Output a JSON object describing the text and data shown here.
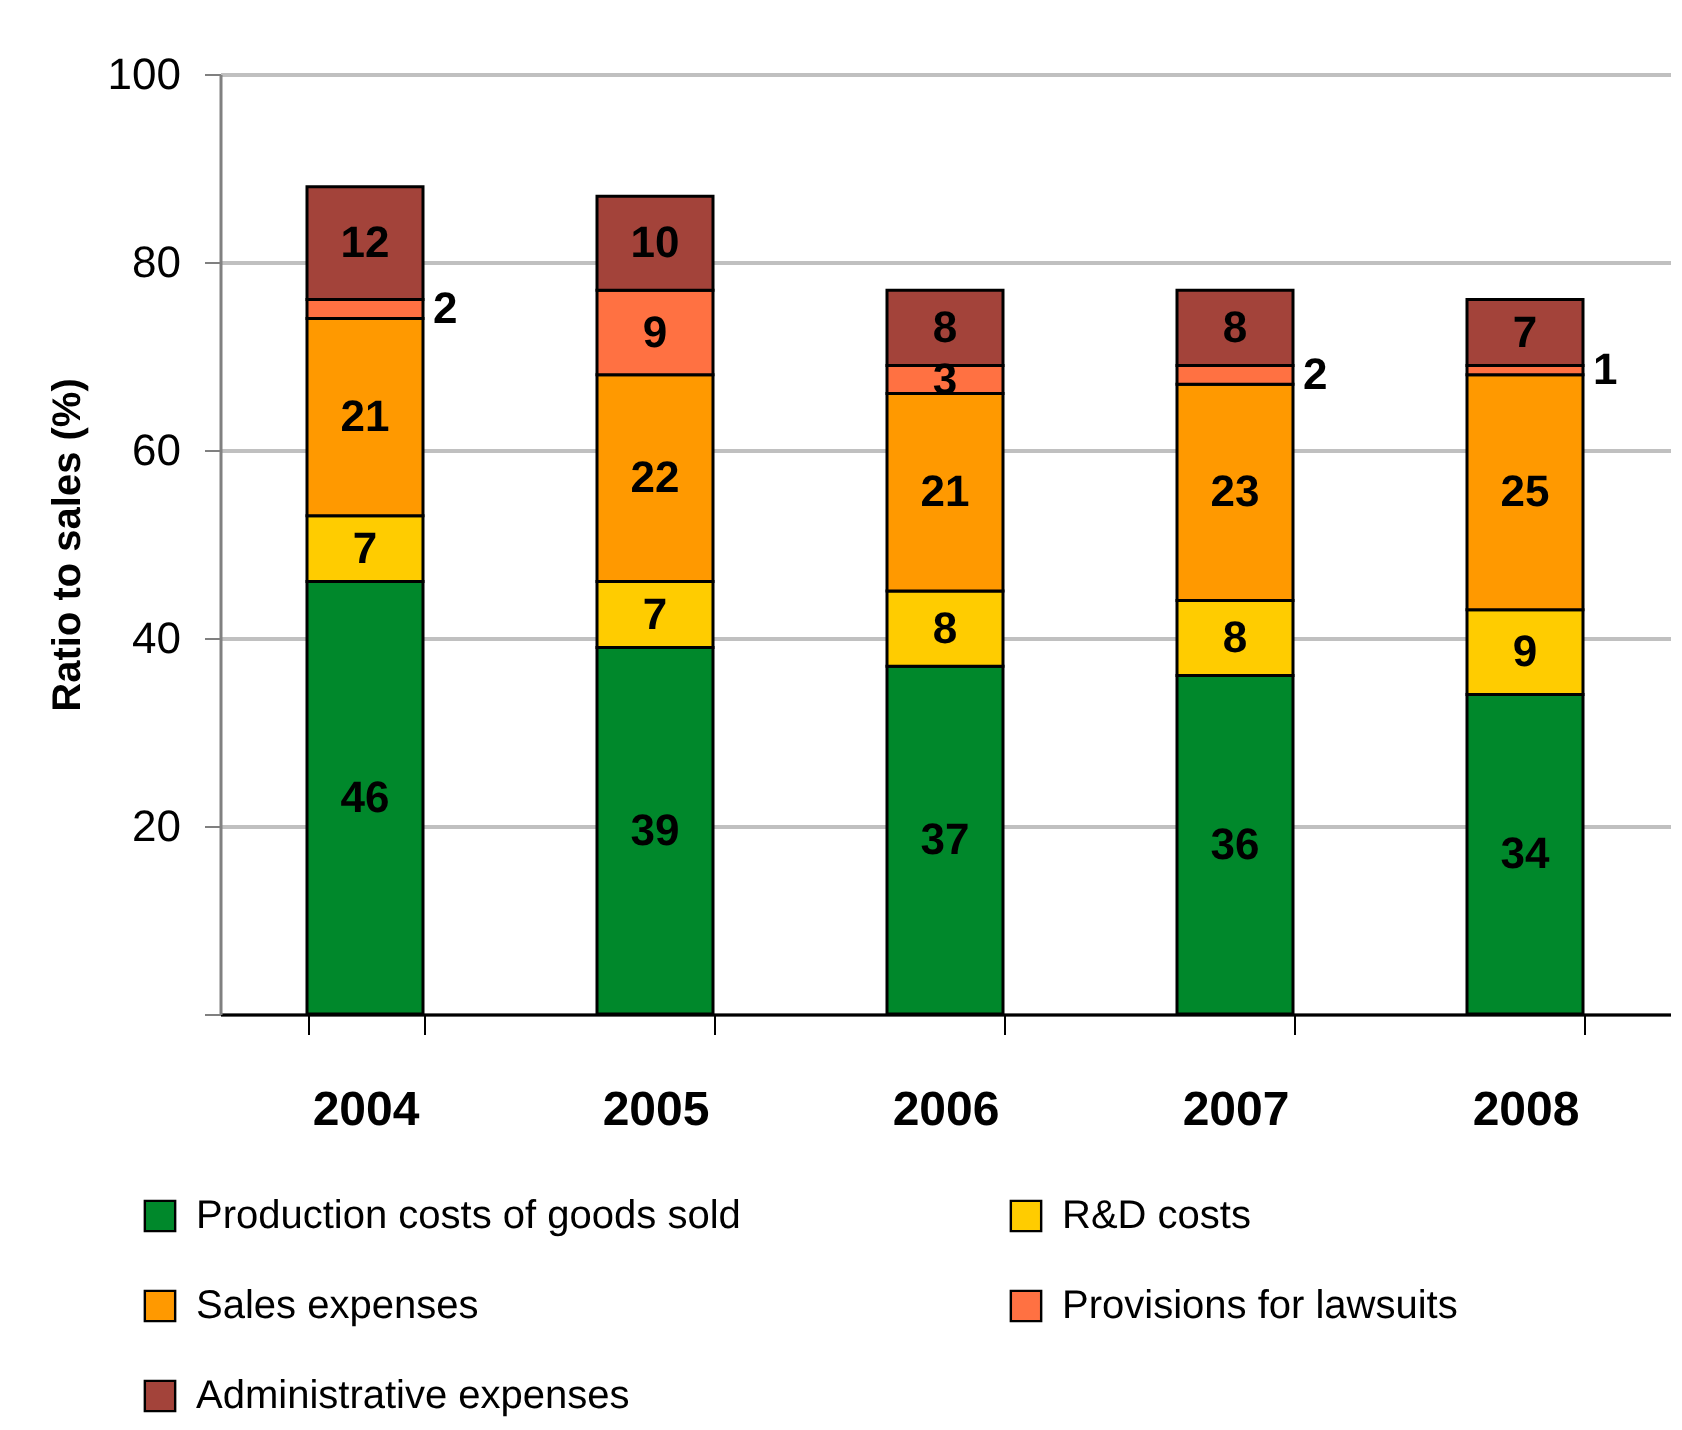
{
  "chart_data": {
    "type": "bar",
    "stacked": true,
    "categories": [
      "2004",
      "2005",
      "2006",
      "2007",
      "2008"
    ],
    "ylabel": "Ratio to sales (%)",
    "ylim": [
      0,
      100
    ],
    "yticks": [
      {
        "value": 0,
        "label": null
      },
      20,
      40,
      60,
      80,
      100
    ],
    "grid": "y",
    "legend": "bottom",
    "data_labels": true,
    "series": [
      {
        "name": "Production costs of goods sold",
        "color": "#00882b",
        "values": [
          46,
          39,
          37,
          36,
          34
        ]
      },
      {
        "name": "R&D costs",
        "color": "#ffcc00",
        "values": [
          7,
          7,
          8,
          8,
          9
        ]
      },
      {
        "name": "Sales expenses",
        "color": "#ff9900",
        "values": [
          21,
          22,
          21,
          23,
          25
        ]
      },
      {
        "name": "Provisions for lawsuits",
        "color": "#ff7142",
        "values": [
          2,
          9,
          3,
          2,
          1
        ]
      },
      {
        "name": "Administrative expenses",
        "color": "#a3433a",
        "values": [
          12,
          10,
          8,
          8,
          7
        ]
      }
    ]
  }
}
